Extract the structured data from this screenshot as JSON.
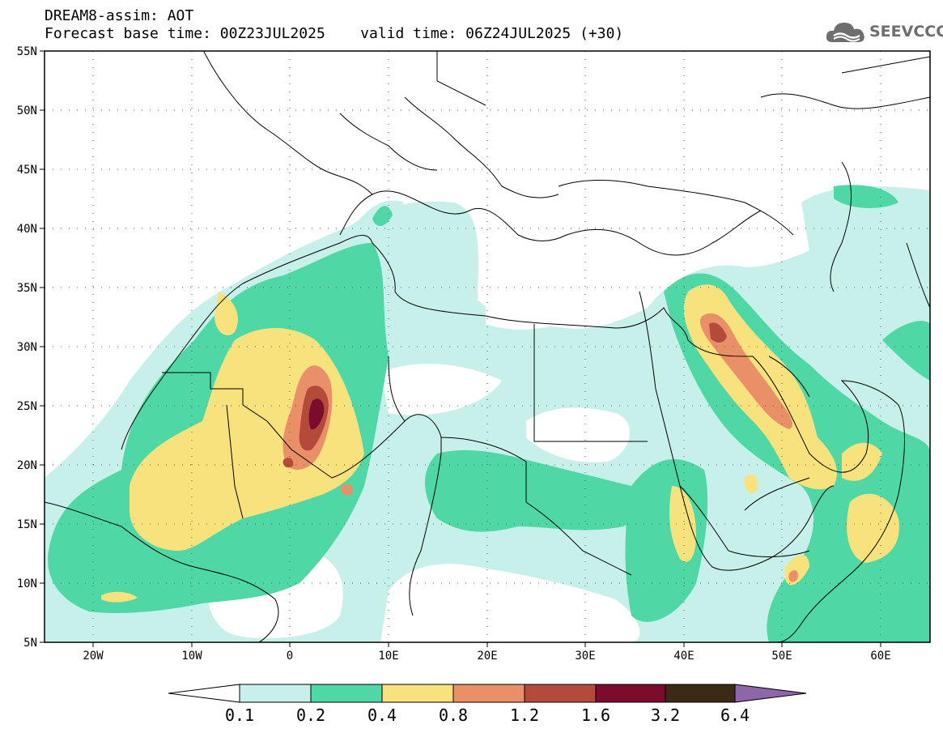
{
  "header": {
    "product": "DREAM8-assim: AOT",
    "base_time": "Forecast base time: 00Z23JUL2025",
    "valid_time": "valid time: 06Z24JUL2025 (+30)"
  },
  "logo": {
    "text": "SEEVCCC",
    "icon": "cloud-icon",
    "color": "#6e6e6e"
  },
  "map": {
    "lon_range": [
      -25,
      65
    ],
    "lat_range": [
      5,
      55
    ],
    "lat_labels": [
      "55N",
      "50N",
      "45N",
      "40N",
      "35N",
      "30N",
      "25N",
      "20N",
      "15N",
      "10N",
      "5N"
    ],
    "lon_labels": [
      "20W",
      "10W",
      "0",
      "10E",
      "20E",
      "30E",
      "40E",
      "50E",
      "60E"
    ]
  },
  "colorbar": {
    "labels": [
      "0.1",
      "0.2",
      "0.4",
      "0.8",
      "1.2",
      "1.6",
      "3.2",
      "6.4"
    ],
    "colors": [
      "#c8f0ea",
      "#4fd8a6",
      "#f7e27d",
      "#ea9068",
      "#b34a3c",
      "#7b0c2c",
      "#3c2a15",
      "#8e66aa"
    ]
  }
}
